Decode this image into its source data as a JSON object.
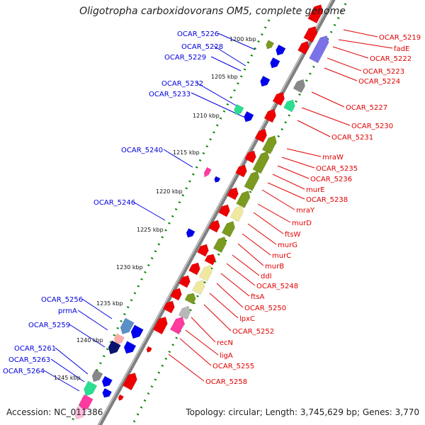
{
  "header": {
    "title": "Oligotropha carboxidovorans OM5, complete genome"
  },
  "footer": {
    "accession": "Accession: NC_011386",
    "summary": "Topology: circular; Length: 3,745,629 bp; Genes: 3,770"
  },
  "colors": {
    "backbone": "#8a8a8a",
    "forward_label": "#e00000",
    "reverse_label": "#0000dd",
    "forward_gene": "#ee0000",
    "reverse_gene": "#0000ee",
    "gc_dots": "#008800"
  },
  "ticks": [
    "1200 kbp",
    "1205 kbp",
    "1210 kbp",
    "1215 kbp",
    "1220 kbp",
    "1225 kbp",
    "1230 kbp",
    "1235 kbp",
    "1240 kbp",
    "1245 kbp"
  ],
  "left_labels": [
    "OCAR_5226",
    "OCAR_5228",
    "OCAR_5229",
    "OCAR_5232",
    "OCAR_5233",
    "OCAR_5240",
    "OCAR_5246",
    "OCAR_5256",
    "prmA",
    "OCAR_5259",
    "OCAR_5261",
    "OCAR_5263",
    "OCAR_5264"
  ],
  "right_labels": [
    "OCAR_5219",
    "fadE",
    "OCAR_5222",
    "OCAR_5223",
    "OCAR_5224",
    "OCAR_5227",
    "OCAR_5230",
    "OCAR_5231",
    "mraW",
    "OCAR_5235",
    "OCAR_5236",
    "murE",
    "OCAR_5238",
    "mraY",
    "murD",
    "ftsW",
    "murG",
    "murC",
    "murB",
    "ddl",
    "OCAR_5248",
    "ftsA",
    "OCAR_5250",
    "lpxC",
    "OCAR_5252",
    "recN",
    "ligA",
    "OCAR_5255",
    "OCAR_5258"
  ]
}
